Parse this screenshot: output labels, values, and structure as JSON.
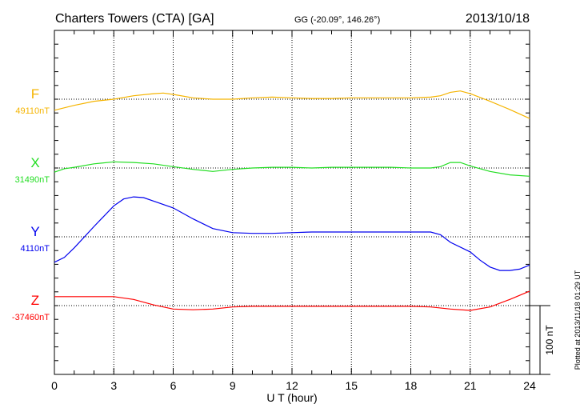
{
  "header": {
    "station": "Charters Towers (CTA)  [GA]",
    "coords": "GG (-20.09°, 146.26°)",
    "date": "2013/10/18"
  },
  "footer": {
    "plotted": "Plotted at 2013/11/18 01:29 UT"
  },
  "chart_data": {
    "type": "line",
    "title": "Charters Towers (CTA)  [GA]",
    "xlabel": "U T (hour)",
    "xlim": [
      0,
      24
    ],
    "xticks": [
      "0",
      "3",
      "6",
      "9",
      "12",
      "15",
      "18",
      "21",
      "24"
    ],
    "scale_label": "100 nT",
    "scale_nT": 100,
    "series": [
      {
        "name": "F",
        "baseline_label": "49110nT",
        "color": "#f5b400",
        "points": [
          [
            0,
            -16
          ],
          [
            1,
            -9
          ],
          [
            2,
            -3
          ],
          [
            3,
            0
          ],
          [
            4,
            5
          ],
          [
            5,
            8
          ],
          [
            5.5,
            9
          ],
          [
            6,
            7
          ],
          [
            7,
            2
          ],
          [
            8,
            0
          ],
          [
            9,
            0
          ],
          [
            10,
            2
          ],
          [
            11,
            3
          ],
          [
            12,
            2
          ],
          [
            13,
            1
          ],
          [
            14,
            1
          ],
          [
            15,
            2
          ],
          [
            16,
            2
          ],
          [
            17,
            2
          ],
          [
            18,
            2
          ],
          [
            19,
            3
          ],
          [
            19.5,
            5
          ],
          [
            20,
            10
          ],
          [
            20.5,
            12
          ],
          [
            21,
            8
          ],
          [
            22,
            -3
          ],
          [
            23,
            -15
          ],
          [
            24,
            -28
          ]
        ]
      },
      {
        "name": "X",
        "baseline_label": "31490nT",
        "color": "#22dd22",
        "points": [
          [
            0,
            -6
          ],
          [
            0.5,
            -1
          ],
          [
            1,
            1
          ],
          [
            2,
            6
          ],
          [
            3,
            9
          ],
          [
            4,
            8
          ],
          [
            5,
            6
          ],
          [
            6,
            2
          ],
          [
            7,
            -2
          ],
          [
            8,
            -5
          ],
          [
            9,
            -2
          ],
          [
            10,
            0
          ],
          [
            11,
            1
          ],
          [
            12,
            1
          ],
          [
            13,
            0
          ],
          [
            14,
            1
          ],
          [
            15,
            1
          ],
          [
            16,
            1
          ],
          [
            17,
            1
          ],
          [
            18,
            0
          ],
          [
            19,
            0
          ],
          [
            19.5,
            2
          ],
          [
            20,
            8
          ],
          [
            20.5,
            8
          ],
          [
            21,
            3
          ],
          [
            22,
            -5
          ],
          [
            23,
            -10
          ],
          [
            24,
            -12
          ]
        ]
      },
      {
        "name": "Y",
        "baseline_label": "4110nT",
        "color": "#0000ee",
        "points": [
          [
            0,
            -37
          ],
          [
            0.5,
            -30
          ],
          [
            1,
            -16
          ],
          [
            2,
            15
          ],
          [
            3,
            45
          ],
          [
            3.5,
            55
          ],
          [
            4,
            58
          ],
          [
            4.5,
            57
          ],
          [
            5,
            52
          ],
          [
            6,
            42
          ],
          [
            7,
            26
          ],
          [
            8,
            12
          ],
          [
            9,
            6
          ],
          [
            10,
            5
          ],
          [
            11,
            5
          ],
          [
            12,
            6
          ],
          [
            13,
            7
          ],
          [
            14,
            7
          ],
          [
            15,
            7
          ],
          [
            16,
            7
          ],
          [
            17,
            7
          ],
          [
            18,
            7
          ],
          [
            19,
            7
          ],
          [
            19.5,
            3
          ],
          [
            20,
            -8
          ],
          [
            21,
            -22
          ],
          [
            21.5,
            -34
          ],
          [
            22,
            -44
          ],
          [
            22.5,
            -49
          ],
          [
            23,
            -49
          ],
          [
            23.5,
            -47
          ],
          [
            24,
            -41
          ]
        ]
      },
      {
        "name": "Z",
        "baseline_label": "-37460nT",
        "color": "#ff0000",
        "points": [
          [
            0,
            13
          ],
          [
            1,
            13
          ],
          [
            2,
            13
          ],
          [
            3,
            13
          ],
          [
            4,
            9
          ],
          [
            5,
            1
          ],
          [
            6,
            -5
          ],
          [
            7,
            -6
          ],
          [
            8,
            -5
          ],
          [
            9,
            -2
          ],
          [
            10,
            -1
          ],
          [
            12,
            -1
          ],
          [
            14,
            -1
          ],
          [
            16,
            -1
          ],
          [
            18,
            -1
          ],
          [
            19,
            -2
          ],
          [
            20,
            -5
          ],
          [
            21,
            -7
          ],
          [
            22,
            -2
          ],
          [
            23,
            9
          ],
          [
            24,
            21
          ]
        ]
      }
    ]
  }
}
